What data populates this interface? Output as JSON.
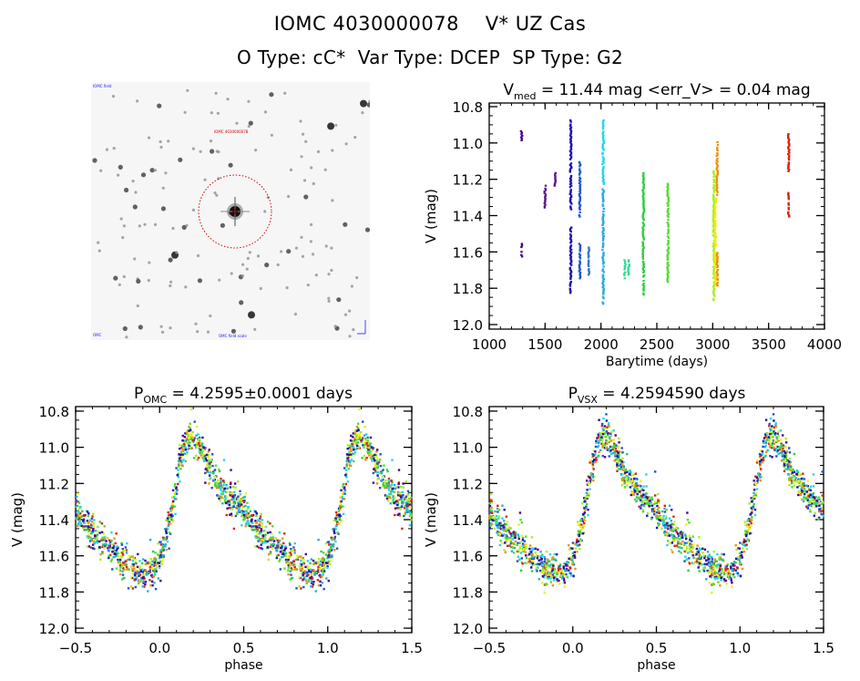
{
  "header": {
    "title_line1": "IOMC 4030000078    V* UZ Cas",
    "title_line2": "O Type: cC*  Var Type: DCEP  SP Type: G2"
  },
  "sky_image": {
    "label_top_left": "IOMC field",
    "label_top_center": "IOMC 4030000078",
    "label_bottom_left": "OMC",
    "label_bottom_center": "OMC field scale",
    "compass": "N-E arrows",
    "target_circle_color": "#cc0000",
    "label_colors": {
      "blue_labels": "#1a1aff",
      "red_label": "#cc0000"
    }
  },
  "chart_data": [
    {
      "id": "timeseries",
      "type": "scatter",
      "title_main": "V",
      "title_sub": "med",
      "title_rest": " = 11.44 mag <err_V> = 0.04 mag",
      "xlabel": "Barytime (days)",
      "ylabel": "V (mag)",
      "xlim": [
        1000,
        4000
      ],
      "ylim": [
        12.025,
        10.78
      ],
      "y_inverted": true,
      "xticks": [
        1000,
        1500,
        2000,
        2500,
        3000,
        3500,
        4000
      ],
      "xtick_labels": [
        "1000",
        "1500",
        "2000",
        "2500",
        "3000",
        "3500",
        "4000"
      ],
      "yticks": [
        10.8,
        11.0,
        11.2,
        11.4,
        11.6,
        11.8,
        12.0
      ],
      "ytick_labels": [
        "10.8",
        "11.0",
        "11.2",
        "11.4",
        "11.6",
        "11.8",
        "12.0"
      ],
      "x_minor_step": 100,
      "y_minor_step": 0.05,
      "segments": [
        {
          "x": 1290,
          "ranges": [
            [
              10.93,
              10.98
            ],
            [
              11.55,
              11.62
            ]
          ],
          "color": "#4b0082"
        },
        {
          "x": 1500,
          "ranges": [
            [
              11.23,
              11.35
            ]
          ],
          "color": "#5a1a8a"
        },
        {
          "x": 1590,
          "ranges": [
            [
              11.16,
              11.23
            ]
          ],
          "color": "#5a1a8a"
        },
        {
          "x": 1730,
          "ranges": [
            [
              10.87,
              11.36
            ],
            [
              11.46,
              11.82
            ]
          ],
          "color": "#1c10b0"
        },
        {
          "x": 1810,
          "ranges": [
            [
              11.1,
              11.4
            ],
            [
              11.55,
              11.74
            ]
          ],
          "color": "#1f55c8"
        },
        {
          "x": 1890,
          "ranges": [
            [
              11.57,
              11.72
            ]
          ],
          "color": "#3a78c0"
        },
        {
          "x": 2020,
          "ranges": [
            [
              10.87,
              11.22
            ]
          ],
          "color": "#22d6ee"
        },
        {
          "x": 2020,
          "ranges": [
            [
              11.25,
              11.88
            ]
          ],
          "color": "#2aaadf"
        },
        {
          "x": 2215,
          "ranges": [
            [
              11.64,
              11.74
            ]
          ],
          "color": "#33dd99"
        },
        {
          "x": 2250,
          "ranges": [
            [
              11.64,
              11.72
            ]
          ],
          "color": "#33dd99"
        },
        {
          "x": 2380,
          "ranges": [
            [
              11.16,
              11.83
            ]
          ],
          "color": "#33cc44"
        },
        {
          "x": 2600,
          "ranges": [
            [
              11.22,
              11.76
            ]
          ],
          "color": "#55dd33"
        },
        {
          "x": 3010,
          "ranges": [
            [
              11.15,
              11.86
            ]
          ],
          "color": "#aaee22"
        },
        {
          "x": 3025,
          "ranges": [
            [
              11.3,
              11.78
            ]
          ],
          "color": "#eeee11"
        },
        {
          "x": 3040,
          "ranges": [
            [
              10.99,
              11.28
            ],
            [
              11.6,
              11.78
            ]
          ],
          "color": "#f09010"
        },
        {
          "x": 3680,
          "ranges": [
            [
              10.93,
              11.15
            ],
            [
              11.27,
              11.4
            ]
          ],
          "color": "#dd2211"
        }
      ]
    },
    {
      "id": "phase_omc",
      "type": "scatter",
      "title_main": "P",
      "title_sub": "OMC",
      "title_rest": " = 4.2595±0.0001 days",
      "xlabel": "phase",
      "ylabel": "V (mag)",
      "xlim": [
        -0.5,
        1.5
      ],
      "ylim": [
        12.025,
        10.775
      ],
      "y_inverted": true,
      "xticks": [
        -0.5,
        0.0,
        0.5,
        1.0,
        1.5
      ],
      "xtick_labels": [
        "−0.5",
        "0.0",
        "0.5",
        "1.0",
        "1.5"
      ],
      "yticks": [
        10.8,
        11.0,
        11.2,
        11.4,
        11.6,
        11.8,
        12.0
      ],
      "ytick_labels": [
        "10.8",
        "11.0",
        "11.2",
        "11.4",
        "11.6",
        "11.8",
        "12.0"
      ],
      "x_minor_step": 0.1,
      "y_minor_step": 0.05,
      "period_days": 4.2595,
      "period_error_days": 0.0001,
      "light_curve_template": [
        [
          0.0,
          11.62
        ],
        [
          0.03,
          11.52
        ],
        [
          0.06,
          11.42
        ],
        [
          0.09,
          11.25
        ],
        [
          0.12,
          11.08
        ],
        [
          0.15,
          10.98
        ],
        [
          0.19,
          10.93
        ],
        [
          0.22,
          10.95
        ],
        [
          0.26,
          11.04
        ],
        [
          0.3,
          11.12
        ],
        [
          0.35,
          11.2
        ],
        [
          0.4,
          11.26
        ],
        [
          0.45,
          11.3
        ],
        [
          0.5,
          11.36
        ],
        [
          0.55,
          11.42
        ],
        [
          0.6,
          11.47
        ],
        [
          0.65,
          11.52
        ],
        [
          0.7,
          11.55
        ],
        [
          0.75,
          11.6
        ],
        [
          0.8,
          11.64
        ],
        [
          0.85,
          11.68
        ],
        [
          0.9,
          11.7
        ],
        [
          0.95,
          11.68
        ],
        [
          1.0,
          11.62
        ]
      ],
      "scatter_mag": 0.05,
      "point_colors": [
        "#1c10b0",
        "#1f55c8",
        "#22d6ee",
        "#2aaadf",
        "#33cc44",
        "#55dd33",
        "#aaee22",
        "#eeee11",
        "#f09010",
        "#dd2211",
        "#4b0082"
      ]
    },
    {
      "id": "phase_vsx",
      "type": "scatter",
      "title_main": "P",
      "title_sub": "VSX",
      "title_rest": " = 4.2594590 days",
      "xlabel": "phase",
      "ylabel": "V (mag)",
      "xlim": [
        -0.5,
        1.5
      ],
      "ylim": [
        12.025,
        10.775
      ],
      "y_inverted": true,
      "xticks": [
        -0.5,
        0.0,
        0.5,
        1.0,
        1.5
      ],
      "xtick_labels": [
        "−0.5",
        "0.0",
        "0.5",
        "1.0",
        "1.5"
      ],
      "yticks": [
        10.8,
        11.0,
        11.2,
        11.4,
        11.6,
        11.8,
        12.0
      ],
      "ytick_labels": [
        "10.8",
        "11.0",
        "11.2",
        "11.4",
        "11.6",
        "11.8",
        "12.0"
      ],
      "x_minor_step": 0.1,
      "y_minor_step": 0.05,
      "period_days": 4.259459,
      "light_curve_template": [
        [
          0.0,
          11.62
        ],
        [
          0.03,
          11.52
        ],
        [
          0.06,
          11.42
        ],
        [
          0.09,
          11.25
        ],
        [
          0.12,
          11.08
        ],
        [
          0.15,
          10.98
        ],
        [
          0.19,
          10.93
        ],
        [
          0.22,
          10.95
        ],
        [
          0.26,
          11.04
        ],
        [
          0.3,
          11.12
        ],
        [
          0.35,
          11.2
        ],
        [
          0.4,
          11.26
        ],
        [
          0.45,
          11.3
        ],
        [
          0.5,
          11.36
        ],
        [
          0.55,
          11.42
        ],
        [
          0.6,
          11.47
        ],
        [
          0.65,
          11.52
        ],
        [
          0.7,
          11.55
        ],
        [
          0.75,
          11.6
        ],
        [
          0.8,
          11.64
        ],
        [
          0.85,
          11.68
        ],
        [
          0.9,
          11.7
        ],
        [
          0.95,
          11.68
        ],
        [
          1.0,
          11.62
        ]
      ],
      "scatter_mag": 0.05,
      "point_colors": [
        "#1c10b0",
        "#1f55c8",
        "#22d6ee",
        "#2aaadf",
        "#33cc44",
        "#55dd33",
        "#aaee22",
        "#eeee11",
        "#f09010",
        "#dd2211",
        "#4b0082"
      ]
    }
  ]
}
